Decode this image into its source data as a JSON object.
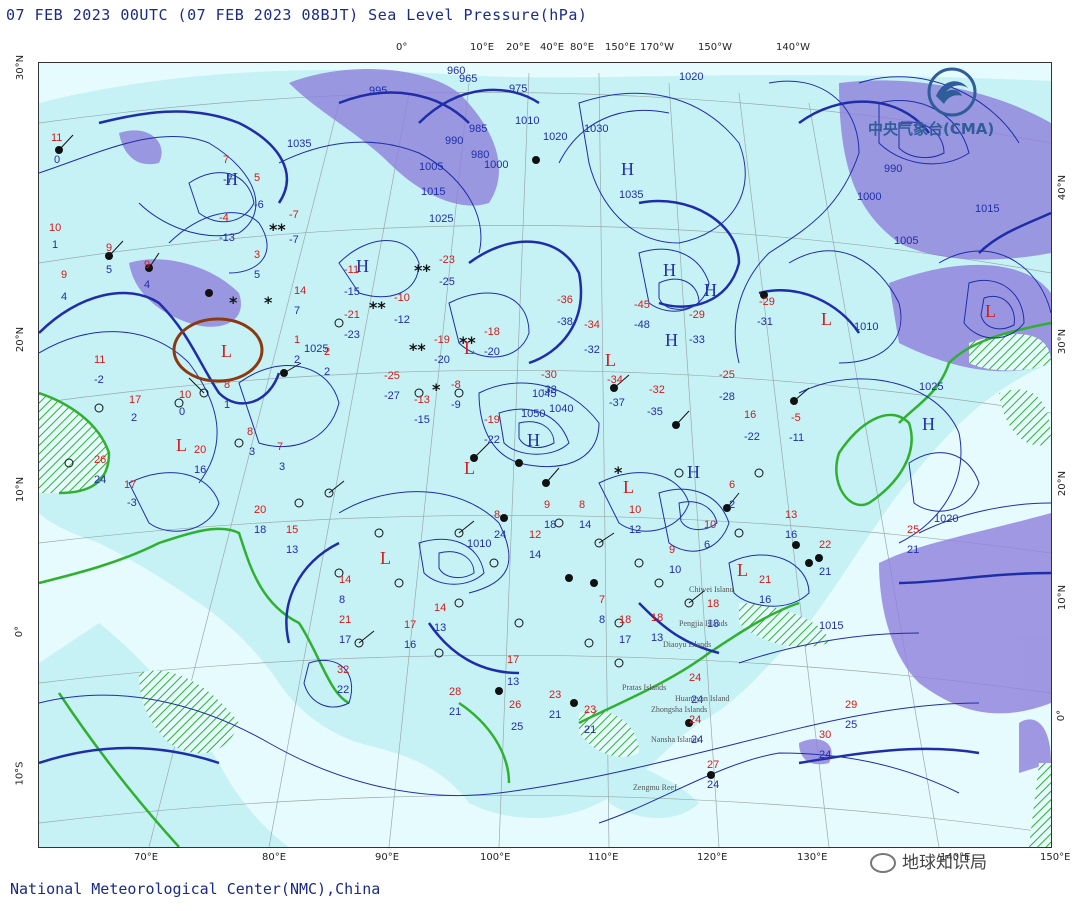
{
  "header": {
    "title": "07 FEB 2023 00UTC  (07 FEB 2023 08BJT) Sea Level Pressure(hPa)"
  },
  "footer": {
    "credit": "National Meteorological Center(NMC),China"
  },
  "logo": {
    "text": "中央气象台(CMA)"
  },
  "watermark": {
    "text": "地球知识局"
  },
  "axes": {
    "top_lon": [
      "0°",
      "10°E",
      "20°E",
      "40°E",
      "80°E",
      "150°E",
      "170°W",
      "150°W",
      "140°W"
    ],
    "bottom_lon": [
      "70°E",
      "80°E",
      "90°E",
      "100°E",
      "110°E",
      "120°E",
      "130°E",
      "140°E",
      "150°E"
    ],
    "left_lat": [
      "30°N",
      "20°N",
      "10°N",
      "0°",
      "10°S"
    ],
    "right_lat": [
      "40°N",
      "30°N",
      "20°N",
      "10°N",
      "0°"
    ]
  },
  "pressure_centers": [
    {
      "type": "H"
    },
    {
      "type": "H"
    },
    {
      "type": "H"
    },
    {
      "type": "H"
    },
    {
      "type": "H"
    },
    {
      "type": "H"
    },
    {
      "type": "H"
    },
    {
      "type": "H"
    },
    {
      "type": "H"
    },
    {
      "type": "L"
    },
    {
      "type": "L"
    },
    {
      "type": "L"
    },
    {
      "type": "L"
    },
    {
      "type": "L"
    },
    {
      "type": "L"
    },
    {
      "type": "L"
    },
    {
      "type": "L"
    },
    {
      "type": "L"
    },
    {
      "type": "L"
    }
  ],
  "isobar_labels": [
    "995",
    "1035",
    "1025",
    "1005",
    "1015",
    "990",
    "985",
    "980",
    "975",
    "965",
    "960",
    "1010",
    "1020",
    "1030",
    "1000",
    "1040",
    "1050",
    "1045",
    "1010",
    "1015",
    "1020",
    "1025",
    "990",
    "1000",
    "1005",
    "1010",
    "1015",
    "1020",
    "1025",
    "1035"
  ],
  "place_names": [
    "Chiwei Island",
    "Pengjia Islands",
    "Diaoyu Islands",
    "Pratas Islands",
    "Huangyan Island",
    "Zhongsha Islands",
    "Nansha Islands",
    "Zengmu Reef"
  ],
  "colors": {
    "ocean": "#e6fbfd",
    "land_pale": "#c6f2f6",
    "precip_green": "#2fb02f",
    "precip_purple": "#8f7fdc",
    "isobar": "#1f2ea8",
    "highlight_ring": "#8b3a0f",
    "high": "#1f2ea8",
    "low": "#d21b1b"
  }
}
